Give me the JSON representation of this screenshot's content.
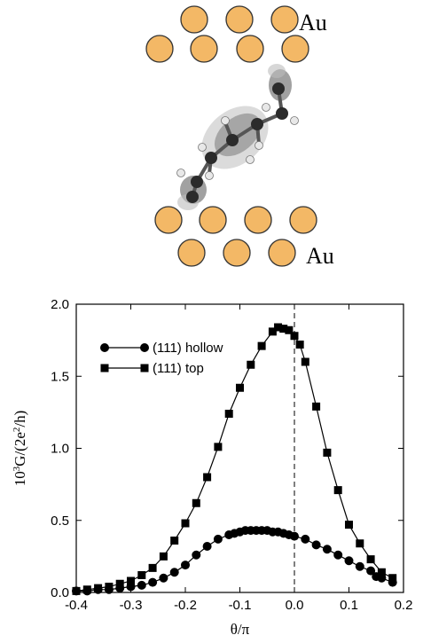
{
  "molecule_panel": {
    "electrode_top_label": "Au",
    "electrode_bottom_label": "Au",
    "colors": {
      "gold": "#f3b866",
      "gold_edge": "#333333",
      "atom": "#2b2b2b",
      "orbital": "#bdbdbd"
    }
  },
  "chart_data": {
    "type": "line",
    "xlabel": "θ/π",
    "ylabel": "10³G/(2e²/h)",
    "ylabel_parts": {
      "base": "10",
      "exp1": "3",
      "mid": "G/(2e",
      "exp2": "2",
      "end": "/h)"
    },
    "xlim": [
      -0.4,
      0.2
    ],
    "ylim": [
      0.0,
      2.0
    ],
    "xticks": [
      "-0.4",
      "-0.3",
      "-0.2",
      "-0.1",
      "0.0",
      "0.1",
      "0.2"
    ],
    "yticks": [
      "0.0",
      "0.5",
      "1.0",
      "1.5",
      "2.0"
    ],
    "xtick_values": [
      -0.4,
      -0.3,
      -0.2,
      -0.1,
      0.0,
      0.1,
      0.2
    ],
    "ytick_values": [
      0.0,
      0.5,
      1.0,
      1.5,
      2.0
    ],
    "vline_x": 0.0,
    "legend_position": "top-left",
    "grid": false,
    "series": [
      {
        "name": "(111) hollow",
        "marker": "circle",
        "x": [
          -0.4,
          -0.38,
          -0.36,
          -0.34,
          -0.32,
          -0.3,
          -0.28,
          -0.26,
          -0.24,
          -0.22,
          -0.2,
          -0.18,
          -0.16,
          -0.14,
          -0.12,
          -0.11,
          -0.1,
          -0.09,
          -0.08,
          -0.07,
          -0.06,
          -0.05,
          -0.04,
          -0.03,
          -0.02,
          -0.01,
          0.0,
          0.02,
          0.04,
          0.06,
          0.08,
          0.1,
          0.12,
          0.14,
          0.15,
          0.16,
          0.18
        ],
        "values": [
          0.01,
          0.01,
          0.02,
          0.02,
          0.03,
          0.04,
          0.05,
          0.07,
          0.1,
          0.14,
          0.19,
          0.26,
          0.32,
          0.37,
          0.4,
          0.41,
          0.42,
          0.43,
          0.43,
          0.43,
          0.43,
          0.43,
          0.42,
          0.42,
          0.41,
          0.4,
          0.39,
          0.37,
          0.33,
          0.3,
          0.26,
          0.22,
          0.18,
          0.15,
          0.11,
          0.1,
          0.07
        ]
      },
      {
        "name": "(111) top",
        "marker": "square",
        "x": [
          -0.4,
          -0.38,
          -0.36,
          -0.34,
          -0.32,
          -0.3,
          -0.28,
          -0.26,
          -0.24,
          -0.22,
          -0.2,
          -0.18,
          -0.16,
          -0.14,
          -0.12,
          -0.1,
          -0.08,
          -0.06,
          -0.04,
          -0.03,
          -0.02,
          -0.01,
          0.0,
          0.01,
          0.02,
          0.04,
          0.06,
          0.08,
          0.1,
          0.12,
          0.14,
          0.16,
          0.18
        ],
        "values": [
          0.01,
          0.02,
          0.03,
          0.04,
          0.06,
          0.08,
          0.12,
          0.17,
          0.25,
          0.36,
          0.48,
          0.62,
          0.8,
          1.01,
          1.24,
          1.42,
          1.58,
          1.71,
          1.81,
          1.84,
          1.83,
          1.82,
          1.78,
          1.72,
          1.6,
          1.29,
          0.97,
          0.71,
          0.47,
          0.34,
          0.23,
          0.14,
          0.1
        ]
      }
    ]
  }
}
